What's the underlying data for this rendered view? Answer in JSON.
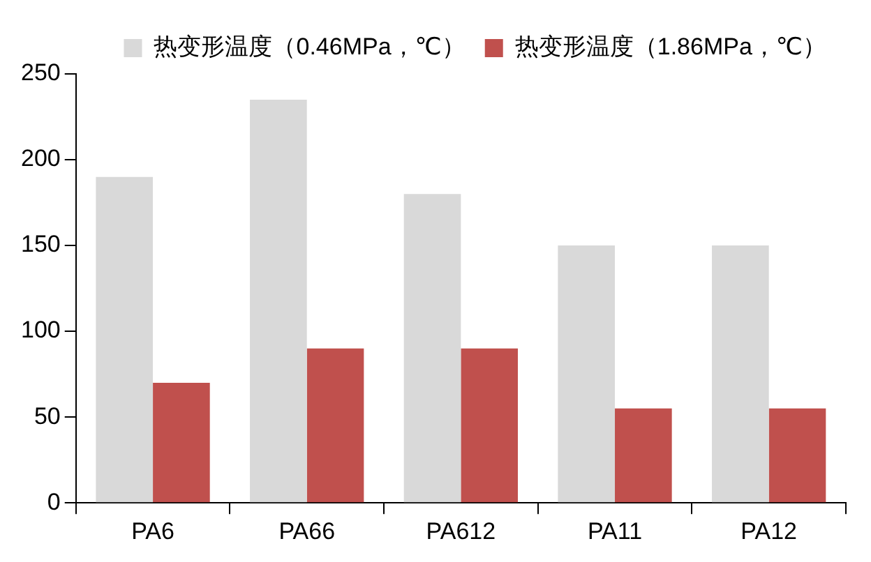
{
  "chart_data": {
    "type": "bar",
    "categories": [
      "PA6",
      "PA66",
      "PA612",
      "PA11",
      "PA12"
    ],
    "series": [
      {
        "name": "热变形温度（0.46MPa，℃）",
        "color": "#d9d9d9",
        "values": [
          190,
          235,
          180,
          150,
          150
        ]
      },
      {
        "name": "热变形温度（1.86MPa，℃）",
        "color": "#c0504d",
        "values": [
          70,
          90,
          90,
          55,
          55
        ]
      }
    ],
    "ylim": [
      0,
      250
    ],
    "yticks": [
      0,
      50,
      100,
      150,
      200,
      250
    ],
    "grid": false,
    "legend": "top right"
  }
}
